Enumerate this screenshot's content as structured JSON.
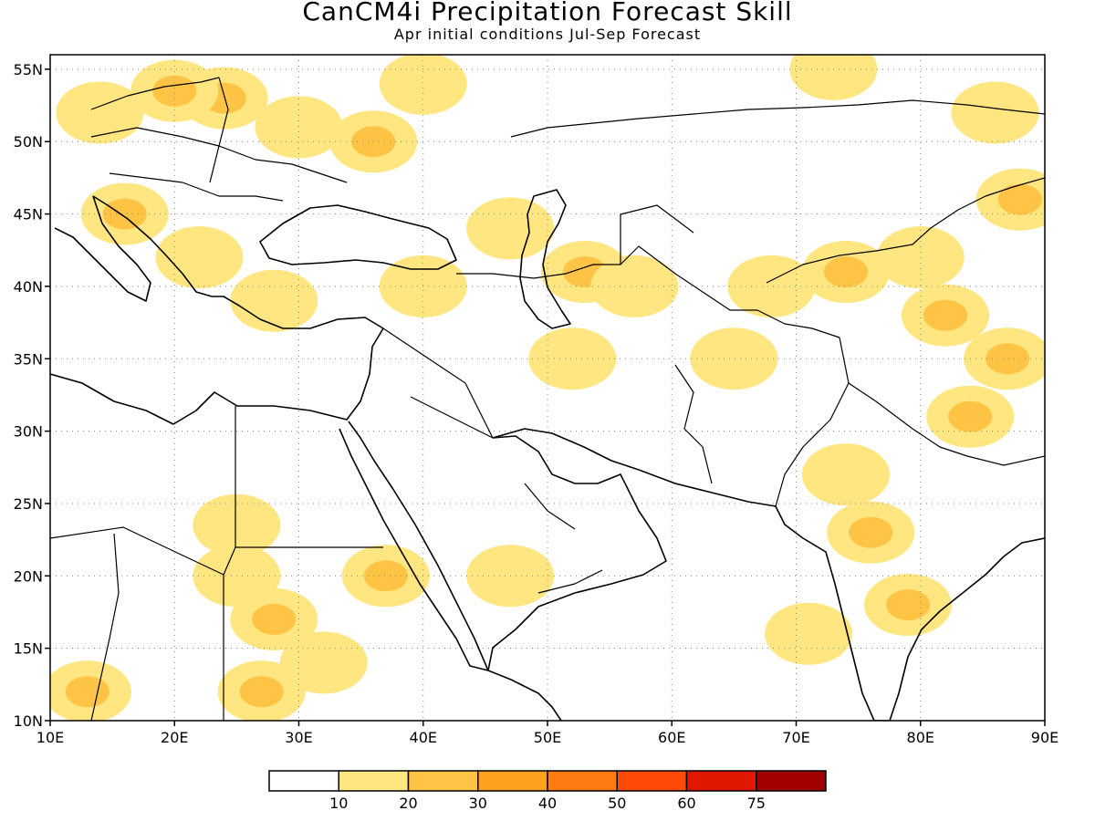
{
  "header": {
    "title": "CanCM4i Precipitation Forecast Skill",
    "subtitle": "Apr initial conditions   Jul-Sep Forecast"
  },
  "map": {
    "lon_range": [
      10,
      90
    ],
    "lat_range": [
      10,
      56
    ],
    "grid": "dotted",
    "lon_ticks": [
      "10E",
      "20E",
      "30E",
      "40E",
      "50E",
      "60E",
      "70E",
      "80E",
      "90E"
    ],
    "lat_ticks": [
      "10N",
      "15N",
      "20N",
      "25N",
      "30N",
      "35N",
      "40N",
      "45N",
      "50N",
      "55N"
    ]
  },
  "colorbar": {
    "labels": [
      "10",
      "20",
      "30",
      "40",
      "50",
      "60",
      "75"
    ],
    "colors": [
      "#ffffff",
      "#ffe680",
      "#ffc445",
      "#ffa020",
      "#ff7a10",
      "#ff4a08",
      "#e01800",
      "#a00000"
    ]
  },
  "skill_regions": [
    {
      "lon": 24,
      "lat": 53,
      "level": 2
    },
    {
      "lon": 30,
      "lat": 51,
      "level": 1
    },
    {
      "lon": 36,
      "lat": 50,
      "level": 2
    },
    {
      "lon": 40,
      "lat": 54,
      "level": 1
    },
    {
      "lon": 14,
      "lat": 52,
      "level": 1
    },
    {
      "lon": 20,
      "lat": 53.5,
      "level": 2
    },
    {
      "lon": 16,
      "lat": 45,
      "level": 2
    },
    {
      "lon": 22,
      "lat": 42,
      "level": 1
    },
    {
      "lon": 28,
      "lat": 39,
      "level": 1
    },
    {
      "lon": 40,
      "lat": 40,
      "level": 1
    },
    {
      "lon": 47,
      "lat": 44,
      "level": 1
    },
    {
      "lon": 53,
      "lat": 41,
      "level": 2
    },
    {
      "lon": 57,
      "lat": 40,
      "level": 1
    },
    {
      "lon": 52,
      "lat": 35,
      "level": 1
    },
    {
      "lon": 68,
      "lat": 40,
      "level": 1
    },
    {
      "lon": 74,
      "lat": 41,
      "level": 2
    },
    {
      "lon": 80,
      "lat": 42,
      "level": 1
    },
    {
      "lon": 82,
      "lat": 38,
      "level": 2
    },
    {
      "lon": 88,
      "lat": 46,
      "level": 2
    },
    {
      "lon": 86,
      "lat": 52,
      "level": 1
    },
    {
      "lon": 73,
      "lat": 55,
      "level": 1
    },
    {
      "lon": 87,
      "lat": 35,
      "level": 2
    },
    {
      "lon": 84,
      "lat": 31,
      "level": 2
    },
    {
      "lon": 76,
      "lat": 23,
      "level": 2
    },
    {
      "lon": 79,
      "lat": 18,
      "level": 2
    },
    {
      "lon": 74,
      "lat": 27,
      "level": 1
    },
    {
      "lon": 71,
      "lat": 16,
      "level": 1
    },
    {
      "lon": 47,
      "lat": 20,
      "level": 1
    },
    {
      "lon": 37,
      "lat": 20,
      "level": 2
    },
    {
      "lon": 25,
      "lat": 20,
      "level": 1
    },
    {
      "lon": 28,
      "lat": 17,
      "level": 2
    },
    {
      "lon": 27,
      "lat": 12,
      "level": 2
    },
    {
      "lon": 32,
      "lat": 14,
      "level": 1
    },
    {
      "lon": 13,
      "lat": 12,
      "level": 2
    },
    {
      "lon": 25,
      "lat": 23.5,
      "level": 1
    },
    {
      "lon": 65,
      "lat": 35,
      "level": 1
    }
  ]
}
